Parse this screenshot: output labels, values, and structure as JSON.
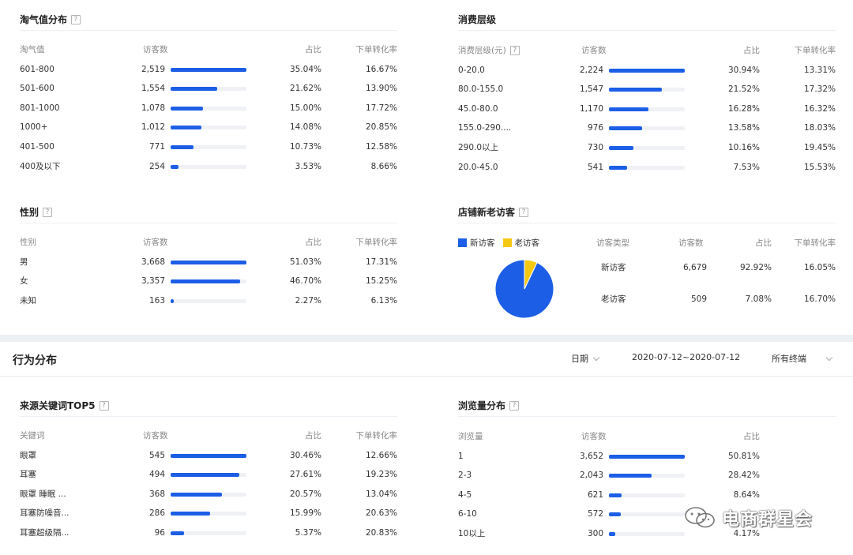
{
  "taoqi": {
    "title": "淘气值分布",
    "headers": [
      "淘气值",
      "访客数",
      "占比",
      "下单转化率"
    ],
    "rows": [
      {
        "name": "601-800",
        "visitors": "2,519",
        "share": 35.04,
        "share_text": "35.04%",
        "conv": "16.67%"
      },
      {
        "name": "501-600",
        "visitors": "1,554",
        "share": 21.62,
        "share_text": "21.62%",
        "conv": "13.90%"
      },
      {
        "name": "801-1000",
        "visitors": "1,078",
        "share": 15.0,
        "share_text": "15.00%",
        "conv": "17.72%"
      },
      {
        "name": "1000+",
        "visitors": "1,012",
        "share": 14.08,
        "share_text": "14.08%",
        "conv": "20.85%"
      },
      {
        "name": "401-500",
        "visitors": "771",
        "share": 10.73,
        "share_text": "10.73%",
        "conv": "12.58%"
      },
      {
        "name": "400及以下",
        "visitors": "254",
        "share": 3.53,
        "share_text": "3.53%",
        "conv": "8.66%"
      }
    ]
  },
  "spend": {
    "title": "消费层级",
    "headers": [
      "消费层级(元)",
      "访客数",
      "占比",
      "下单转化率"
    ],
    "rows": [
      {
        "name": "0-20.0",
        "visitors": "2,224",
        "share": 30.94,
        "share_text": "30.94%",
        "conv": "13.31%"
      },
      {
        "name": "80.0-155.0",
        "visitors": "1,547",
        "share": 21.52,
        "share_text": "21.52%",
        "conv": "17.32%"
      },
      {
        "name": "45.0-80.0",
        "visitors": "1,170",
        "share": 16.28,
        "share_text": "16.28%",
        "conv": "16.32%"
      },
      {
        "name": "155.0-290....",
        "visitors": "976",
        "share": 13.58,
        "share_text": "13.58%",
        "conv": "18.03%"
      },
      {
        "name": "290.0以上",
        "visitors": "730",
        "share": 10.16,
        "share_text": "10.16%",
        "conv": "19.45%"
      },
      {
        "name": "20.0-45.0",
        "visitors": "541",
        "share": 7.53,
        "share_text": "7.53%",
        "conv": "15.53%"
      }
    ]
  },
  "gender": {
    "title": "性别",
    "headers": [
      "性别",
      "访客数",
      "占比",
      "下单转化率"
    ],
    "rows": [
      {
        "name": "男",
        "visitors": "3,668",
        "share": 51.03,
        "share_text": "51.03%",
        "conv": "17.31%"
      },
      {
        "name": "女",
        "visitors": "3,357",
        "share": 46.7,
        "share_text": "46.70%",
        "conv": "15.25%"
      },
      {
        "name": "未知",
        "visitors": "163",
        "share": 2.27,
        "share_text": "2.27%",
        "conv": "6.13%"
      }
    ]
  },
  "newold": {
    "title": "店铺新老访客",
    "legend": [
      {
        "label": "新访客",
        "color": "#1c5ee6"
      },
      {
        "label": "老访客",
        "color": "#f5c814"
      }
    ],
    "headers": [
      "访客类型",
      "访客数",
      "占比",
      "下单转化率"
    ],
    "rows": [
      {
        "type": "新访客",
        "visitors": "6,679",
        "share": 92.92,
        "share_text": "92.92%",
        "conv": "16.05%"
      },
      {
        "type": "老访客",
        "visitors": "509",
        "share": 7.08,
        "share_text": "7.08%",
        "conv": "16.70%"
      }
    ]
  },
  "behavior": {
    "title": "行为分布",
    "date_label": "日期",
    "date_range": "2020-07-12~2020-07-12",
    "terminal": "所有终端"
  },
  "keywords": {
    "title": "来源关键词TOP5",
    "headers": [
      "关键词",
      "访客数",
      "占比",
      "下单转化率"
    ],
    "rows": [
      {
        "name": "眼罩",
        "visitors": "545",
        "share": 30.46,
        "share_text": "30.46%",
        "conv": "12.66%"
      },
      {
        "name": "耳塞",
        "visitors": "494",
        "share": 27.61,
        "share_text": "27.61%",
        "conv": "19.23%"
      },
      {
        "name": "眼罩 睡眠 ...",
        "visitors": "368",
        "share": 20.57,
        "share_text": "20.57%",
        "conv": "13.04%"
      },
      {
        "name": "耳塞防噪音...",
        "visitors": "286",
        "share": 15.99,
        "share_text": "15.99%",
        "conv": "20.63%"
      },
      {
        "name": "耳塞超级隔...",
        "visitors": "96",
        "share": 5.37,
        "share_text": "5.37%",
        "conv": "20.83%"
      }
    ]
  },
  "pageviews": {
    "title": "浏览量分布",
    "headers": [
      "浏览量",
      "访客数",
      "占比"
    ],
    "rows": [
      {
        "name": "1",
        "visitors": "3,652",
        "share": 50.81,
        "share_text": "50.81%"
      },
      {
        "name": "2-3",
        "visitors": "2,043",
        "share": 28.42,
        "share_text": "28.42%"
      },
      {
        "name": "4-5",
        "visitors": "621",
        "share": 8.64,
        "share_text": "8.64%"
      },
      {
        "name": "6-10",
        "visitors": "572",
        "share": 7.96,
        "share_text": ""
      },
      {
        "name": "10以上",
        "visitors": "300",
        "share": 4.17,
        "share_text": "4.17%"
      }
    ]
  },
  "watermark": {
    "text": "电商群星会"
  },
  "colors": {
    "bar": "#1c5ee6",
    "bar_track": "#eff1f5",
    "new_visitor": "#1c5ee6",
    "old_visitor": "#f5c814"
  }
}
